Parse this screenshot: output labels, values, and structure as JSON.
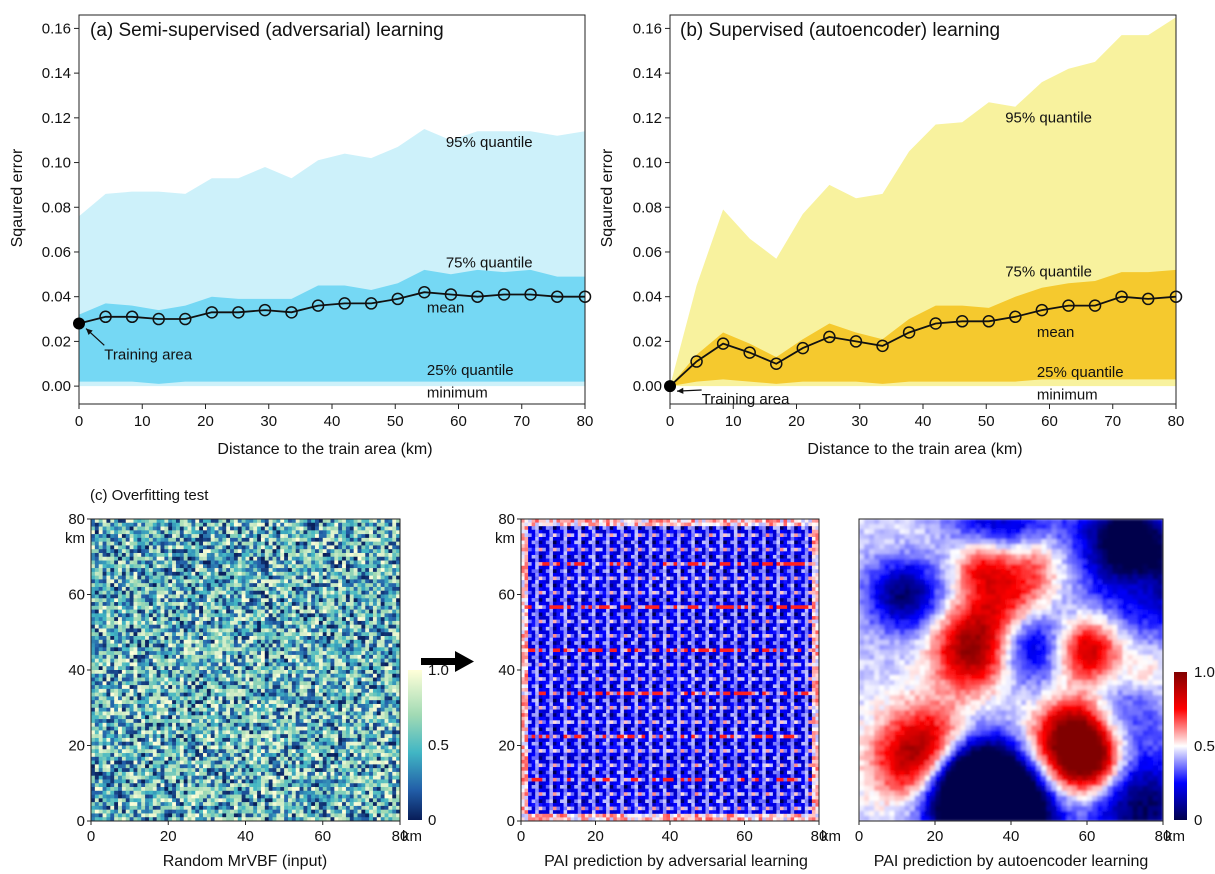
{
  "chart_data": [
    {
      "type": "area",
      "panel": "a",
      "title": "(a) Semi-supervised (adversarial) learning",
      "xlabel": "Distance to the train area (km)",
      "ylabel": "Sqaured error",
      "xlim": [
        0,
        80
      ],
      "ylim": [
        -0.008,
        0.166
      ],
      "xticks": [
        "0",
        "10",
        "20",
        "30",
        "40",
        "50",
        "60",
        "70",
        "80"
      ],
      "yticks": [
        "0.00",
        "0.02",
        "0.04",
        "0.06",
        "0.08",
        "0.10",
        "0.12",
        "0.14",
        "0.16"
      ],
      "grid": false,
      "colors": {
        "outer": "#cdf1fa",
        "inner": "#75d8f4",
        "line": "#111111"
      },
      "x": [
        0,
        4.2,
        8.4,
        12.6,
        16.8,
        21,
        25.2,
        29.4,
        33.6,
        37.8,
        42,
        46.2,
        50.4,
        54.6,
        58.8,
        63,
        67.2,
        71.4,
        75.6,
        80
      ],
      "series": [
        {
          "name": "95% quantile",
          "values": [
            0.076,
            0.086,
            0.087,
            0.087,
            0.086,
            0.093,
            0.093,
            0.098,
            0.093,
            0.101,
            0.104,
            0.102,
            0.107,
            0.115,
            0.11,
            0.114,
            0.114,
            0.114,
            0.112,
            0.114
          ]
        },
        {
          "name": "75% quantile",
          "values": [
            0.032,
            0.037,
            0.036,
            0.034,
            0.036,
            0.04,
            0.039,
            0.039,
            0.039,
            0.045,
            0.045,
            0.043,
            0.046,
            0.052,
            0.05,
            0.052,
            0.051,
            0.052,
            0.049,
            0.049
          ]
        },
        {
          "name": "mean",
          "values": [
            0.028,
            0.031,
            0.031,
            0.03,
            0.03,
            0.033,
            0.033,
            0.034,
            0.033,
            0.036,
            0.037,
            0.037,
            0.039,
            0.042,
            0.041,
            0.04,
            0.041,
            0.041,
            0.04,
            0.04
          ]
        },
        {
          "name": "25% quantile",
          "values": [
            0.002,
            0.002,
            0.002,
            0.001,
            0.002,
            0.002,
            0.002,
            0.002,
            0.002,
            0.002,
            0.002,
            0.002,
            0.002,
            0.002,
            0.002,
            0.002,
            0.002,
            0.002,
            0.002,
            0.002
          ]
        },
        {
          "name": "minimum",
          "values": [
            0,
            0,
            0,
            0,
            0,
            0,
            0,
            0,
            0,
            0,
            0,
            0,
            0,
            0,
            0,
            0,
            0,
            0,
            0,
            0
          ]
        }
      ],
      "annotations": [
        {
          "text": "95% quantile",
          "x": 58,
          "y": 0.107
        },
        {
          "text": "75% quantile",
          "x": 58,
          "y": 0.053
        },
        {
          "text": "mean",
          "x": 55,
          "y": 0.033
        },
        {
          "text": "25% quantile",
          "x": 55,
          "y": 0.005
        },
        {
          "text": "minimum",
          "x": 55,
          "y": -0.005
        },
        {
          "text": "Training area",
          "x": 4,
          "y": 0.012
        }
      ]
    },
    {
      "type": "area",
      "panel": "b",
      "title": "(b) Supervised (autoencoder) learning",
      "xlabel": "Distance to the train area (km)",
      "ylabel": "Sqaured error",
      "xlim": [
        0,
        80
      ],
      "ylim": [
        -0.008,
        0.166
      ],
      "xticks": [
        "0",
        "10",
        "20",
        "30",
        "40",
        "50",
        "60",
        "70",
        "80"
      ],
      "yticks": [
        "0.00",
        "0.02",
        "0.04",
        "0.06",
        "0.08",
        "0.10",
        "0.12",
        "0.14",
        "0.16"
      ],
      "grid": false,
      "colors": {
        "outer": "#f8f29e",
        "inner": "#f5c92e",
        "line": "#111111"
      },
      "x": [
        0,
        4.2,
        8.4,
        12.6,
        16.8,
        21,
        25.2,
        29.4,
        33.6,
        37.8,
        42,
        46.2,
        50.4,
        54.6,
        58.8,
        63,
        67.2,
        71.4,
        75.6,
        80
      ],
      "series": [
        {
          "name": "95% quantile",
          "values": [
            0.0,
            0.045,
            0.079,
            0.066,
            0.057,
            0.077,
            0.09,
            0.084,
            0.086,
            0.105,
            0.117,
            0.118,
            0.127,
            0.125,
            0.136,
            0.142,
            0.145,
            0.157,
            0.157,
            0.165
          ]
        },
        {
          "name": "75% quantile",
          "values": [
            0.0,
            0.014,
            0.024,
            0.019,
            0.013,
            0.021,
            0.028,
            0.024,
            0.021,
            0.03,
            0.036,
            0.036,
            0.035,
            0.04,
            0.044,
            0.046,
            0.047,
            0.051,
            0.051,
            0.052
          ]
        },
        {
          "name": "mean",
          "values": [
            0.0,
            0.011,
            0.019,
            0.015,
            0.01,
            0.017,
            0.022,
            0.02,
            0.018,
            0.024,
            0.028,
            0.029,
            0.029,
            0.031,
            0.034,
            0.036,
            0.036,
            0.04,
            0.039,
            0.04
          ]
        },
        {
          "name": "25% quantile",
          "values": [
            0.0,
            0.002,
            0.003,
            0.002,
            0.001,
            0.002,
            0.002,
            0.002,
            0.001,
            0.002,
            0.002,
            0.002,
            0.002,
            0.002,
            0.003,
            0.003,
            0.003,
            0.003,
            0.003,
            0.003
          ]
        },
        {
          "name": "minimum",
          "values": [
            0,
            0,
            0,
            0,
            0,
            0,
            0,
            0,
            0,
            0,
            0,
            0,
            0,
            0,
            0,
            0,
            0,
            0,
            0,
            0
          ]
        }
      ],
      "annotations": [
        {
          "text": "95% quantile",
          "x": 53,
          "y": 0.118
        },
        {
          "text": "75% quantile",
          "x": 53,
          "y": 0.049
        },
        {
          "text": "mean",
          "x": 58,
          "y": 0.022
        },
        {
          "text": "25% quantile",
          "x": 58,
          "y": 0.004
        },
        {
          "text": "minimum",
          "x": 58,
          "y": -0.006
        },
        {
          "text": "Training area",
          "x": 5,
          "y": -0.008
        }
      ]
    },
    {
      "type": "heatmap",
      "panel": "c1",
      "title": "(c) Overfitting test",
      "xlabel": "Random MrVBF (input)",
      "unit": "km",
      "xticks": [
        "0",
        "20",
        "40",
        "60",
        "80"
      ],
      "yticks": [
        "0",
        "20",
        "40",
        "60",
        "80"
      ],
      "colorbar": {
        "ticks": [
          "0",
          "0.5",
          "1.0"
        ],
        "colormap": "YlGnBu"
      }
    },
    {
      "type": "heatmap",
      "panel": "c2",
      "xlabel": "PAI prediction by adversarial learning",
      "unit": "km",
      "xticks": [
        "0",
        "20",
        "40",
        "60",
        "80"
      ],
      "yticks": [
        "0",
        "20",
        "40",
        "60",
        "80"
      ]
    },
    {
      "type": "heatmap",
      "panel": "c3",
      "xlabel": "PAI prediction by autoencoder learning",
      "unit": "km",
      "xticks": [
        "0",
        "20",
        "40",
        "60",
        "80"
      ],
      "colorbar": {
        "ticks": [
          "0",
          "0.5",
          "1.0"
        ],
        "colormap": "seismic"
      }
    }
  ]
}
